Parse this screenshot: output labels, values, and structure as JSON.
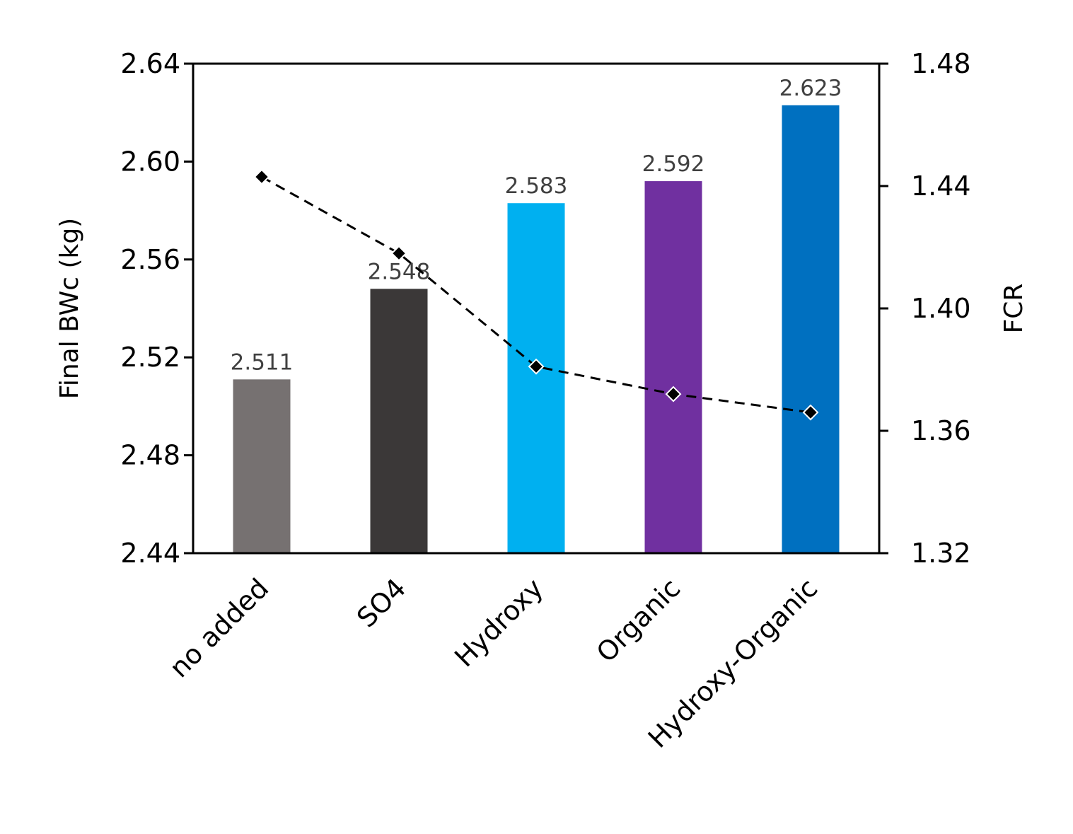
{
  "chart_data": {
    "type": "bar",
    "categories": [
      "no added",
      "SO4",
      "Hydroxy",
      "Organic",
      "Hydroxy-Organic"
    ],
    "series": [
      {
        "axis": "left",
        "type": "bar",
        "values": [
          2.511,
          2.548,
          2.583,
          2.592,
          2.623
        ],
        "colors": [
          "#767171",
          "#3B3838",
          "#00B0F0",
          "#7030A0",
          "#0070C0"
        ],
        "data_labels": [
          "2.511",
          "2.548",
          "2.583",
          "2.592",
          "2.623"
        ]
      },
      {
        "axis": "right",
        "type": "line",
        "style": "dashed",
        "marker": "diamond",
        "color": "#000000",
        "values": [
          1.443,
          1.418,
          1.381,
          1.372,
          1.366
        ]
      }
    ],
    "ylabel": "Final BWc (kg)",
    "y2label": "FCR",
    "ylim": [
      2.44,
      2.64
    ],
    "y2lim": [
      1.32,
      1.48
    ],
    "yticks": [
      "2.44",
      "2.48",
      "2.52",
      "2.56",
      "2.60",
      "2.64"
    ],
    "y2ticks": [
      "1.32",
      "1.36",
      "1.40",
      "1.44",
      "1.48"
    ],
    "grid": false,
    "legend": "none"
  }
}
